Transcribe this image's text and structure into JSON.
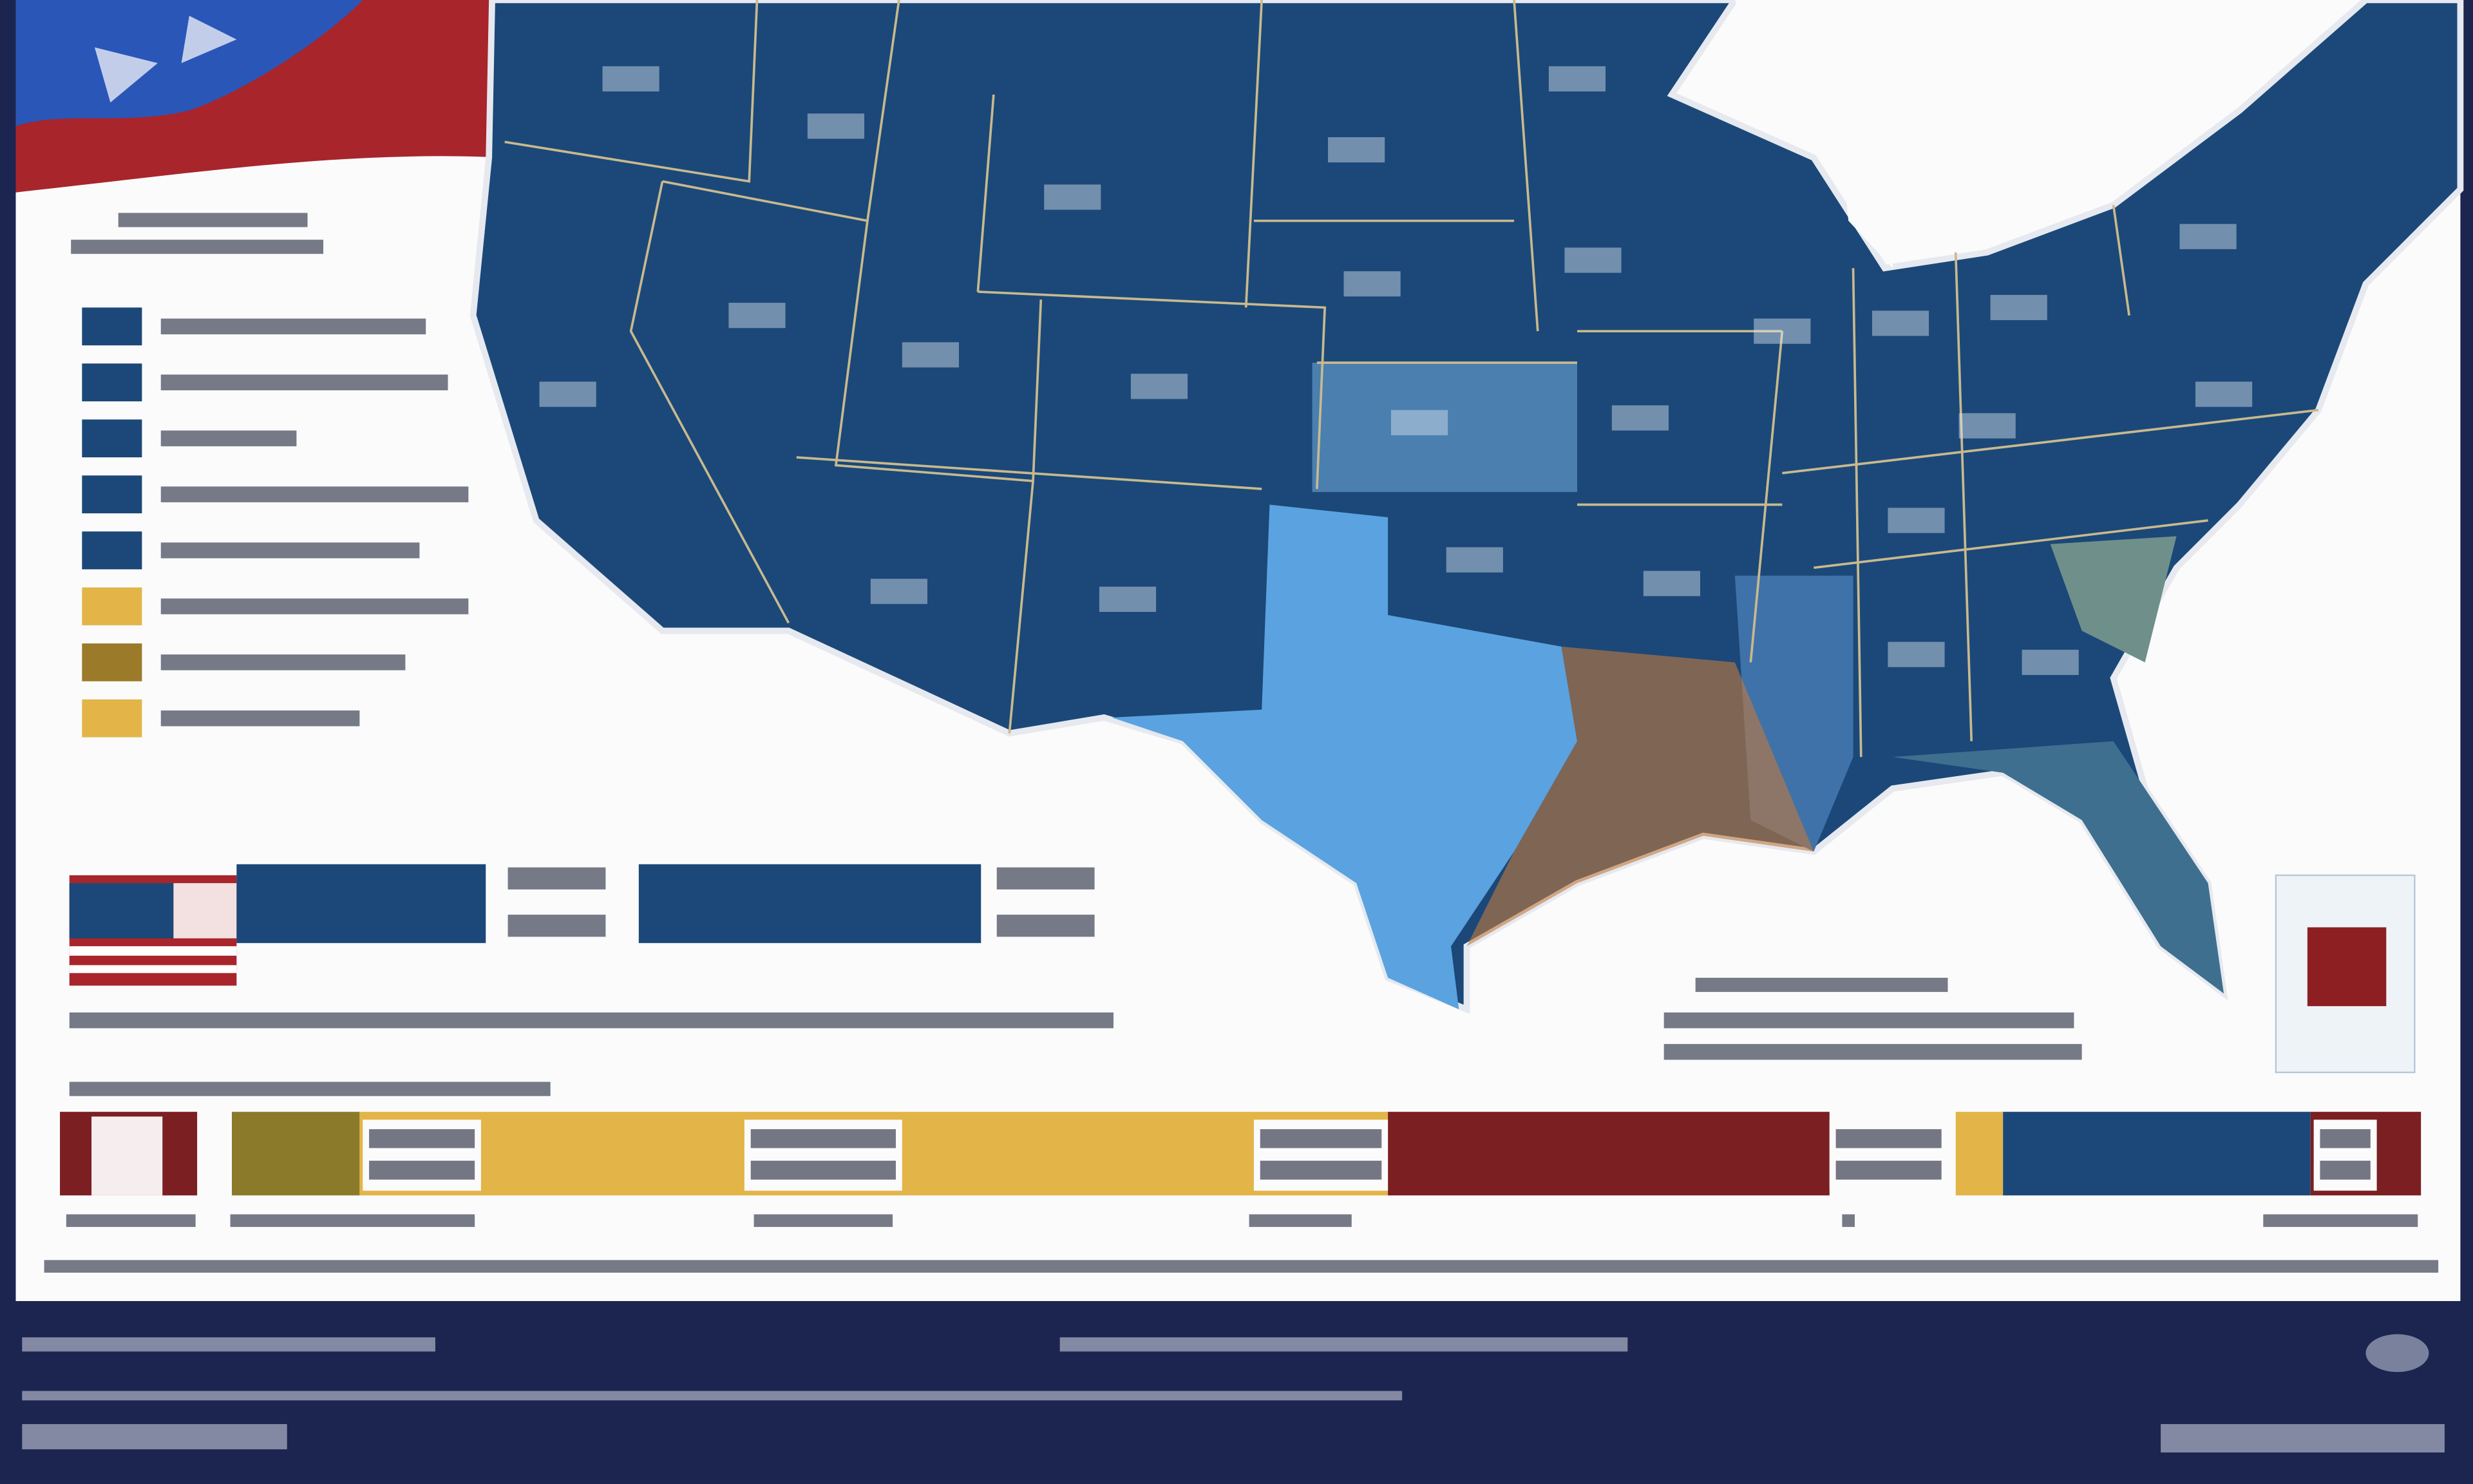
{
  "map": {
    "land_fill": "#1b4878",
    "border_color": "#c8b98e",
    "kansas_fill": "#4a7fb0",
    "mississippi_fill": "#3f72a8",
    "texas_fill": "#5aa3e0"
  },
  "legend": {
    "swatches": [
      "#1b4878",
      "#1b4878",
      "#1b4878",
      "#1b4878",
      "#1b4878",
      "#e3b548",
      "#9b7a2a",
      "#e3b548"
    ]
  },
  "comparison": {
    "bars": [
      "#1b4878",
      "#1b4878"
    ]
  },
  "timeline": {
    "segments": [
      "#7b1f23",
      "#8b7a2a",
      "#e3b548",
      "#7b1f23",
      "#e3b548",
      "#1b4878",
      "#7b1f23"
    ]
  }
}
